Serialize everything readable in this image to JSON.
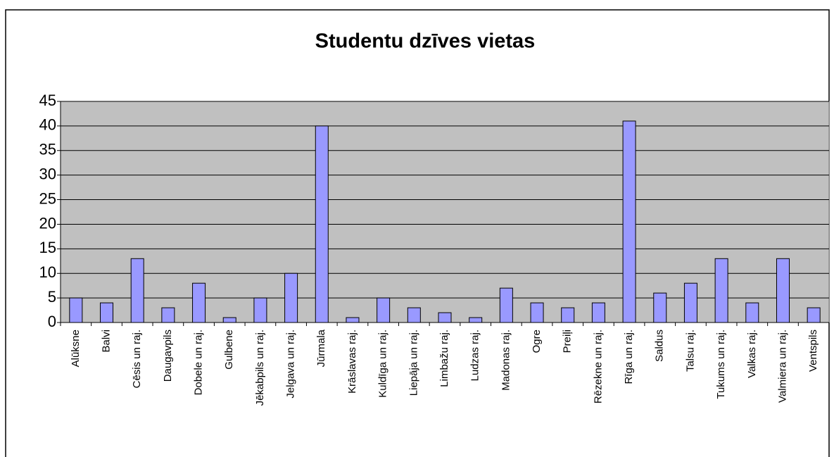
{
  "chart_data": {
    "type": "bar",
    "title": "Studentu dzīves vietas",
    "categories": [
      "Alūksne",
      "Balvi",
      "Cēsis un raj.",
      "Daugavpils",
      "Dobele un raj.",
      "Gulbene",
      "Jēkabpils un raj.",
      "Jelgava un raj.",
      "Jūrmala",
      "Krāslavas raj.",
      "Kuldīga un raj.",
      "Liepāja un raj.",
      "Limbažu raj.",
      "Ludzas raj.",
      "Madonas raj.",
      "Ogre",
      "Preiļi",
      "Rēzekne un raj.",
      "Rīga un raj.",
      "Saldus",
      "Talsu raj.",
      "Tukums un raj.",
      "Valkas raj.",
      "Valmiera un raj.",
      "Ventspils"
    ],
    "values": [
      5,
      4,
      13,
      3,
      8,
      1,
      5,
      10,
      40,
      1,
      5,
      3,
      2,
      1,
      7,
      4,
      3,
      4,
      41,
      6,
      8,
      13,
      4,
      13,
      3
    ],
    "color": "#9999ff",
    "ylim": [
      0,
      45
    ],
    "yticks": [
      0,
      5,
      10,
      15,
      20,
      25,
      30,
      35,
      40,
      45
    ],
    "grid": true
  }
}
